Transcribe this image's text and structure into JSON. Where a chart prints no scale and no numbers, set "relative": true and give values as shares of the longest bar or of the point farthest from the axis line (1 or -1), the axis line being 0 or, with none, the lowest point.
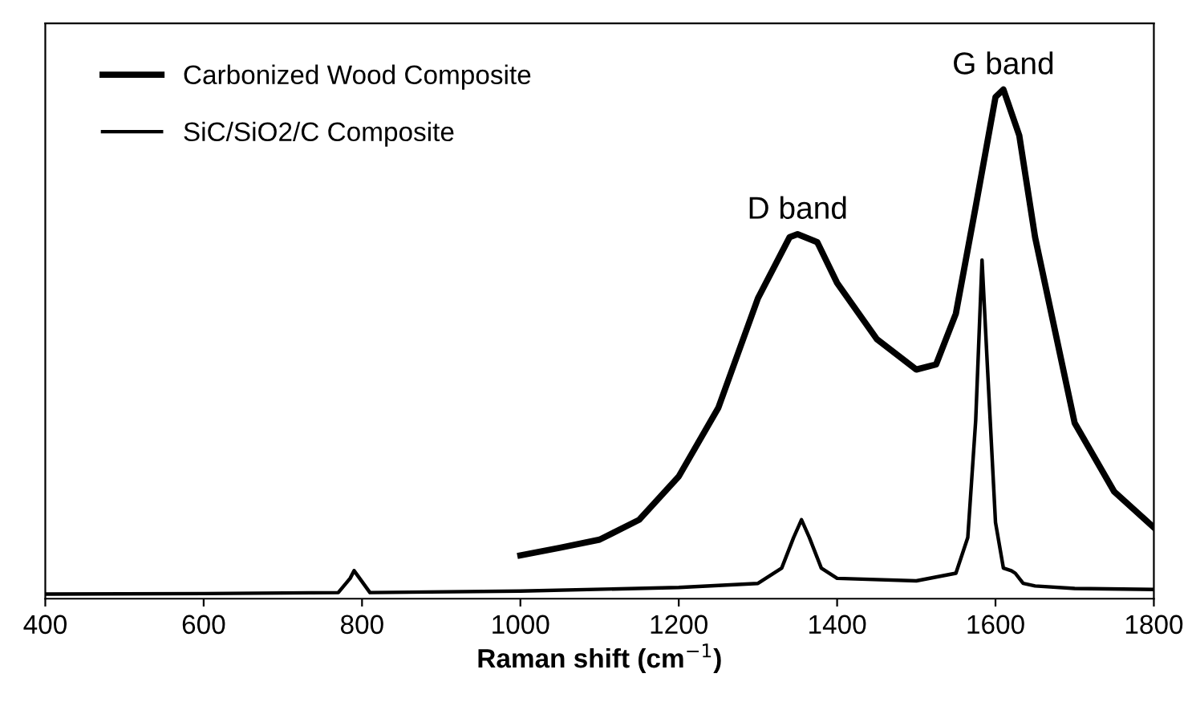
{
  "chart_data": {
    "type": "line",
    "xlabel": "Raman shift (cm$^{−1}$)",
    "relative": true,
    "legend": "top left",
    "grid": false,
    "xlim": [
      400,
      1800
    ],
    "xticks": [
      400,
      600,
      800,
      1000,
      1200,
      1400,
      1600,
      1800
    ],
    "annotations": [
      {
        "text": "D band",
        "x": 1350,
        "y": 0.716
      },
      {
        "text": "G band",
        "x": 1610,
        "y": 1.0
      }
    ],
    "series": [
      {
        "name": "Carbonized Wood Composite",
        "color": "#000000",
        "x": [
          1000,
          1050,
          1100,
          1150,
          1200,
          1250,
          1300,
          1340,
          1350,
          1375,
          1400,
          1450,
          1500,
          1525,
          1550,
          1575,
          1600,
          1610,
          1630,
          1650,
          1700,
          1750,
          1800
        ],
        "values": [
          0.085,
          0.1,
          0.116,
          0.155,
          0.24,
          0.375,
          0.59,
          0.71,
          0.716,
          0.7,
          0.62,
          0.51,
          0.45,
          0.46,
          0.56,
          0.77,
          0.985,
          1.0,
          0.91,
          0.71,
          0.345,
          0.21,
          0.14
        ]
      },
      {
        "name": "SiC/SiO2/C Composite",
        "color": "#000000",
        "x": [
          400,
          600,
          770,
          785,
          790,
          797,
          810,
          1000,
          1200,
          1300,
          1330,
          1345,
          1355,
          1365,
          1380,
          1400,
          1500,
          1550,
          1565,
          1575,
          1583,
          1590,
          1600,
          1610,
          1620,
          1625,
          1635,
          1650,
          1700,
          1800
        ],
        "values": [
          0.009,
          0.01,
          0.012,
          0.04,
          0.055,
          0.04,
          0.012,
          0.015,
          0.022,
          0.03,
          0.06,
          0.12,
          0.155,
          0.12,
          0.06,
          0.04,
          0.035,
          0.05,
          0.12,
          0.35,
          0.665,
          0.45,
          0.15,
          0.06,
          0.055,
          0.05,
          0.03,
          0.025,
          0.02,
          0.018
        ]
      }
    ]
  }
}
